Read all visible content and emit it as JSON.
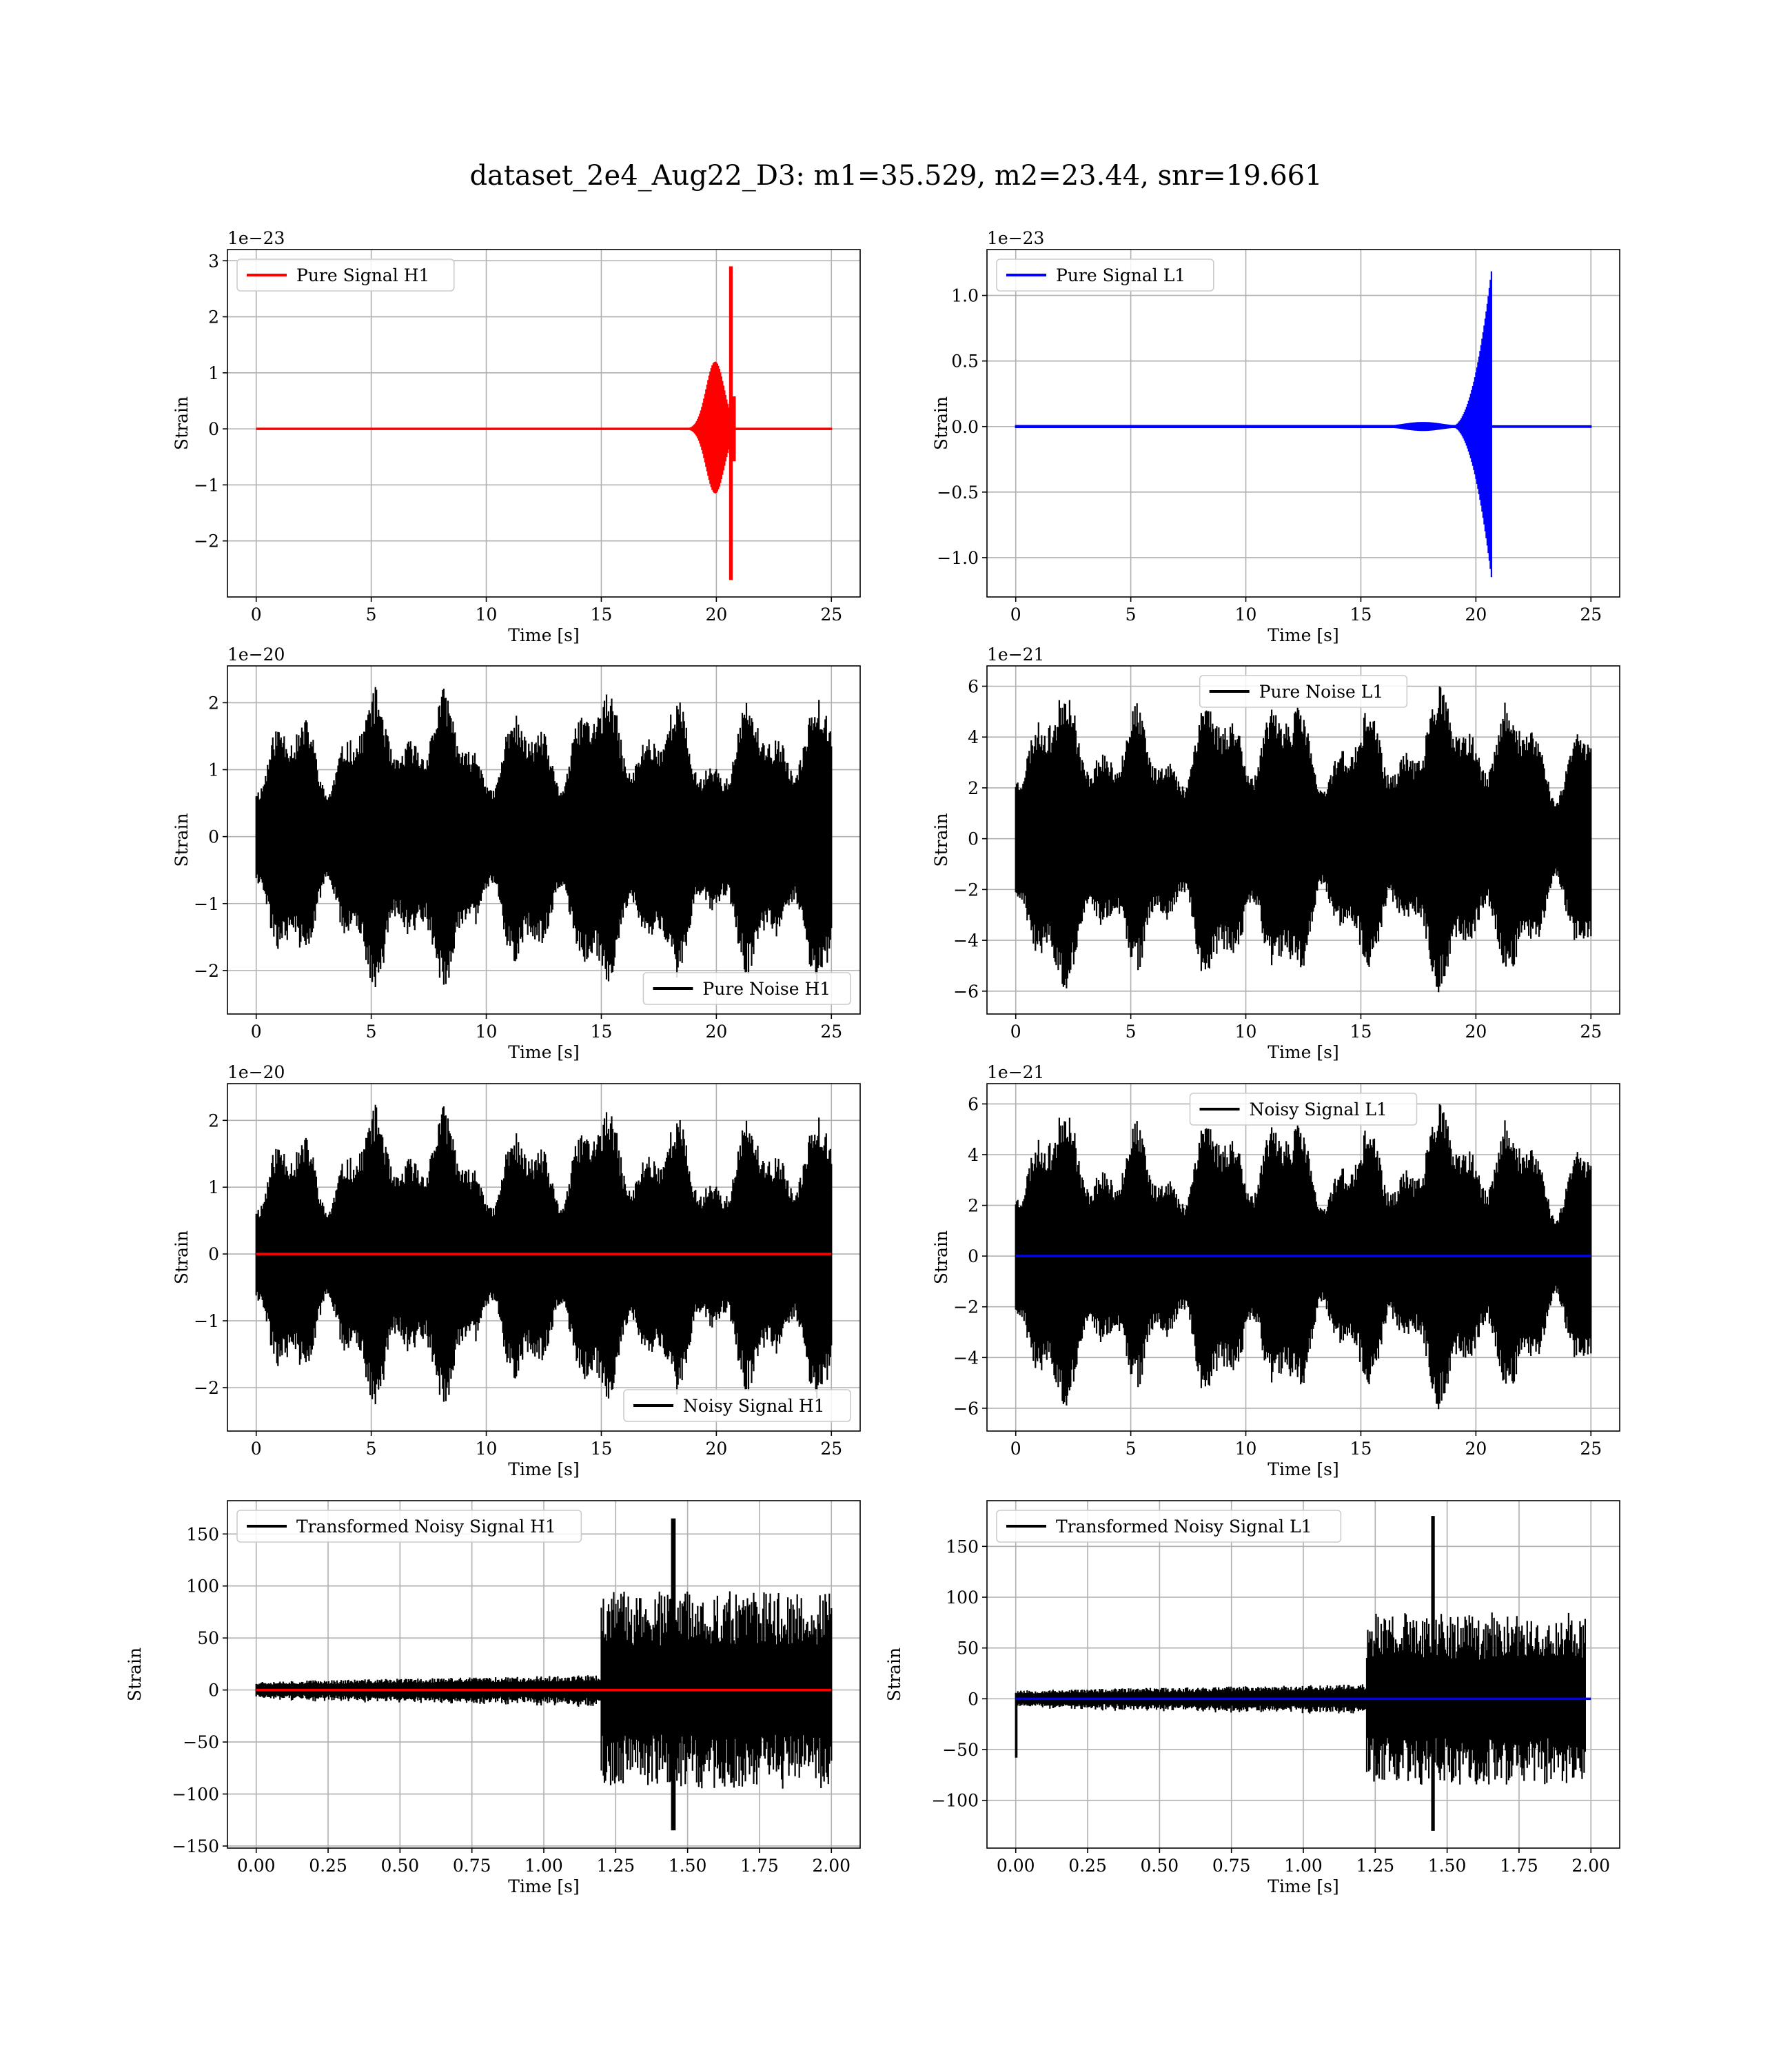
{
  "figure": {
    "title": "dataset_2e4_Aug22_D3: m1=35.529, m2=23.44, snr=19.661"
  },
  "colors": {
    "h1_signal": "#ff0000",
    "l1_signal": "#0000ff",
    "noise": "#000000",
    "grid": "#b0b0b0"
  },
  "chart_data": [
    {
      "id": "pure-signal-h1",
      "type": "line",
      "color": "#ff0000",
      "legend": "Pure Signal H1",
      "legend_loc": "upper left",
      "xlabel": "Time [s]",
      "ylabel": "Strain",
      "offset_text": "1e−23",
      "xlim": [
        -1.25,
        26.25
      ],
      "ylim": [
        -3.0,
        3.2
      ],
      "xticks": [
        0,
        5,
        10,
        15,
        20,
        25
      ],
      "xtick_labels": [
        "0",
        "5",
        "10",
        "15",
        "20",
        "25"
      ],
      "yticks": [
        -2,
        -1,
        0,
        1,
        2,
        3
      ],
      "ytick_labels": [
        "−2",
        "−1",
        "0",
        "1",
        "2",
        "3"
      ],
      "grid": true,
      "waveform": {
        "kind": "chirp",
        "t_start": 0,
        "t_end": 25,
        "t_merge": 20.7,
        "peak": 2.9,
        "pre_peak": 1.2
      }
    },
    {
      "id": "pure-signal-l1",
      "type": "line",
      "color": "#0000ff",
      "legend": "Pure Signal L1",
      "legend_loc": "upper left",
      "xlabel": "Time [s]",
      "ylabel": "Strain",
      "offset_text": "1e−23",
      "xlim": [
        -1.25,
        26.25
      ],
      "ylim": [
        -1.3,
        1.35
      ],
      "xticks": [
        0,
        5,
        10,
        15,
        20,
        25
      ],
      "xtick_labels": [
        "0",
        "5",
        "10",
        "15",
        "20",
        "25"
      ],
      "yticks": [
        -1.0,
        -0.5,
        0.0,
        0.5,
        1.0
      ],
      "ytick_labels": [
        "−1.0",
        "−0.5",
        "0.0",
        "0.5",
        "1.0"
      ],
      "grid": true,
      "waveform": {
        "kind": "chirp-l1",
        "t_start": 0,
        "t_end": 25,
        "t_merge": 20.7,
        "peak": 1.22
      }
    },
    {
      "id": "pure-noise-h1",
      "type": "line",
      "color": "#000000",
      "legend": "Pure Noise H1",
      "legend_loc": "lower right",
      "xlabel": "Time [s]",
      "ylabel": "Strain",
      "offset_text": "1e−20",
      "xlim": [
        -1.25,
        26.25
      ],
      "ylim": [
        -2.65,
        2.55
      ],
      "xticks": [
        0,
        5,
        10,
        15,
        20,
        25
      ],
      "xtick_labels": [
        "0",
        "5",
        "10",
        "15",
        "20",
        "25"
      ],
      "yticks": [
        -2,
        -1,
        0,
        1,
        2
      ],
      "ytick_labels": [
        "−2",
        "−1",
        "0",
        "1",
        "2"
      ],
      "grid": true,
      "waveform": {
        "kind": "noise",
        "t_start": 0,
        "t_end": 25,
        "max": 2.35,
        "min": -2.4,
        "seed": 11
      }
    },
    {
      "id": "pure-noise-l1",
      "type": "line",
      "color": "#000000",
      "legend": "Pure Noise L1",
      "legend_loc": "upper center",
      "xlabel": "Time [s]",
      "ylabel": "Strain",
      "offset_text": "1e−21",
      "xlim": [
        -1.25,
        26.25
      ],
      "ylim": [
        -6.9,
        6.8
      ],
      "xticks": [
        0,
        5,
        10,
        15,
        20,
        25
      ],
      "xtick_labels": [
        "0",
        "5",
        "10",
        "15",
        "20",
        "25"
      ],
      "yticks": [
        -6,
        -4,
        -2,
        0,
        2,
        4,
        6
      ],
      "ytick_labels": [
        "−6",
        "−4",
        "−2",
        "0",
        "2",
        "4",
        "6"
      ],
      "grid": true,
      "waveform": {
        "kind": "noise",
        "t_start": 0,
        "t_end": 25,
        "max": 6.3,
        "min": -6.3,
        "seed": 23
      }
    },
    {
      "id": "noisy-signal-h1",
      "type": "line",
      "color": "#000000",
      "overlay_color": "#ff0000",
      "legend": "Noisy Signal H1",
      "legend_loc": "lower right",
      "xlabel": "Time [s]",
      "ylabel": "Strain",
      "offset_text": "1e−20",
      "xlim": [
        -1.25,
        26.25
      ],
      "ylim": [
        -2.65,
        2.55
      ],
      "xticks": [
        0,
        5,
        10,
        15,
        20,
        25
      ],
      "xtick_labels": [
        "0",
        "5",
        "10",
        "15",
        "20",
        "25"
      ],
      "yticks": [
        -2,
        -1,
        0,
        1,
        2
      ],
      "ytick_labels": [
        "−2",
        "−1",
        "0",
        "1",
        "2"
      ],
      "grid": true,
      "waveform": {
        "kind": "noise",
        "t_start": 0,
        "t_end": 25,
        "max": 2.35,
        "min": -2.4,
        "seed": 11
      },
      "overlay": {
        "kind": "flat",
        "t_start": 0,
        "t_end": 25,
        "value": 0
      }
    },
    {
      "id": "noisy-signal-l1",
      "type": "line",
      "color": "#000000",
      "overlay_color": "#0000ff",
      "legend": "Noisy Signal L1",
      "legend_loc": "upper center",
      "xlabel": "Time [s]",
      "ylabel": "Strain",
      "offset_text": "1e−21",
      "xlim": [
        -1.25,
        26.25
      ],
      "ylim": [
        -6.9,
        6.8
      ],
      "xticks": [
        0,
        5,
        10,
        15,
        20,
        25
      ],
      "xtick_labels": [
        "0",
        "5",
        "10",
        "15",
        "20",
        "25"
      ],
      "yticks": [
        -6,
        -4,
        -2,
        0,
        2,
        4,
        6
      ],
      "ytick_labels": [
        "−6",
        "−4",
        "−2",
        "0",
        "2",
        "4",
        "6"
      ],
      "grid": true,
      "waveform": {
        "kind": "noise",
        "t_start": 0,
        "t_end": 25,
        "max": 6.3,
        "min": -6.3,
        "seed": 23
      },
      "overlay": {
        "kind": "flat",
        "t_start": 0,
        "t_end": 25,
        "value": 0
      }
    },
    {
      "id": "transformed-noisy-signal-h1",
      "type": "line",
      "color": "#000000",
      "overlay_color": "#ff0000",
      "legend": "Transformed Noisy Signal H1",
      "legend_loc": "upper left",
      "xlabel": "Time [s]",
      "ylabel": "Strain",
      "offset_text": "",
      "xlim": [
        -0.1,
        2.1
      ],
      "ylim": [
        -152,
        182
      ],
      "xticks": [
        0.0,
        0.25,
        0.5,
        0.75,
        1.0,
        1.25,
        1.5,
        1.75,
        2.0
      ],
      "xtick_labels": [
        "0.00",
        "0.25",
        "0.50",
        "0.75",
        "1.00",
        "1.25",
        "1.50",
        "1.75",
        "2.00"
      ],
      "yticks": [
        -150,
        -100,
        -50,
        0,
        50,
        100,
        150
      ],
      "ytick_labels": [
        "−150",
        "−100",
        "−50",
        "0",
        "50",
        "100",
        "150"
      ],
      "grid": true,
      "waveform": {
        "kind": "transformed",
        "t_start": 0,
        "t_end": 2.0,
        "t_jump": 1.2,
        "quiet_amp": 12,
        "loud_amp": 95,
        "spike_t": 1.45,
        "spike_max": 165,
        "spike_min": -135,
        "seed": 37
      },
      "overlay": {
        "kind": "flat",
        "t_start": 0,
        "t_end": 2.0,
        "value": 0
      }
    },
    {
      "id": "transformed-noisy-signal-l1",
      "type": "line",
      "color": "#000000",
      "overlay_color": "#0000ff",
      "legend": "Transformed Noisy Signal L1",
      "legend_loc": "upper left",
      "xlabel": "Time [s]",
      "ylabel": "Strain",
      "offset_text": "",
      "xlim": [
        -0.1,
        2.1
      ],
      "ylim": [
        -147,
        195
      ],
      "xticks": [
        0.0,
        0.25,
        0.5,
        0.75,
        1.0,
        1.25,
        1.5,
        1.75,
        2.0
      ],
      "xtick_labels": [
        "0.00",
        "0.25",
        "0.50",
        "0.75",
        "1.00",
        "1.25",
        "1.50",
        "1.75",
        "2.00"
      ],
      "yticks": [
        -100,
        -50,
        0,
        50,
        100,
        150
      ],
      "ytick_labels": [
        "−100",
        "−50",
        "0",
        "50",
        "100",
        "150"
      ],
      "grid": true,
      "waveform": {
        "kind": "transformed",
        "t_start": 0,
        "t_end": 1.98,
        "t_jump": 1.22,
        "quiet_amp": 12,
        "loud_amp": 85,
        "spike_t": 1.45,
        "spike_max": 180,
        "spike_min": -130,
        "start_dip": -58,
        "seed": 53
      },
      "overlay": {
        "kind": "flat",
        "t_start": 0,
        "t_end": 2.0,
        "value": 0
      }
    }
  ]
}
